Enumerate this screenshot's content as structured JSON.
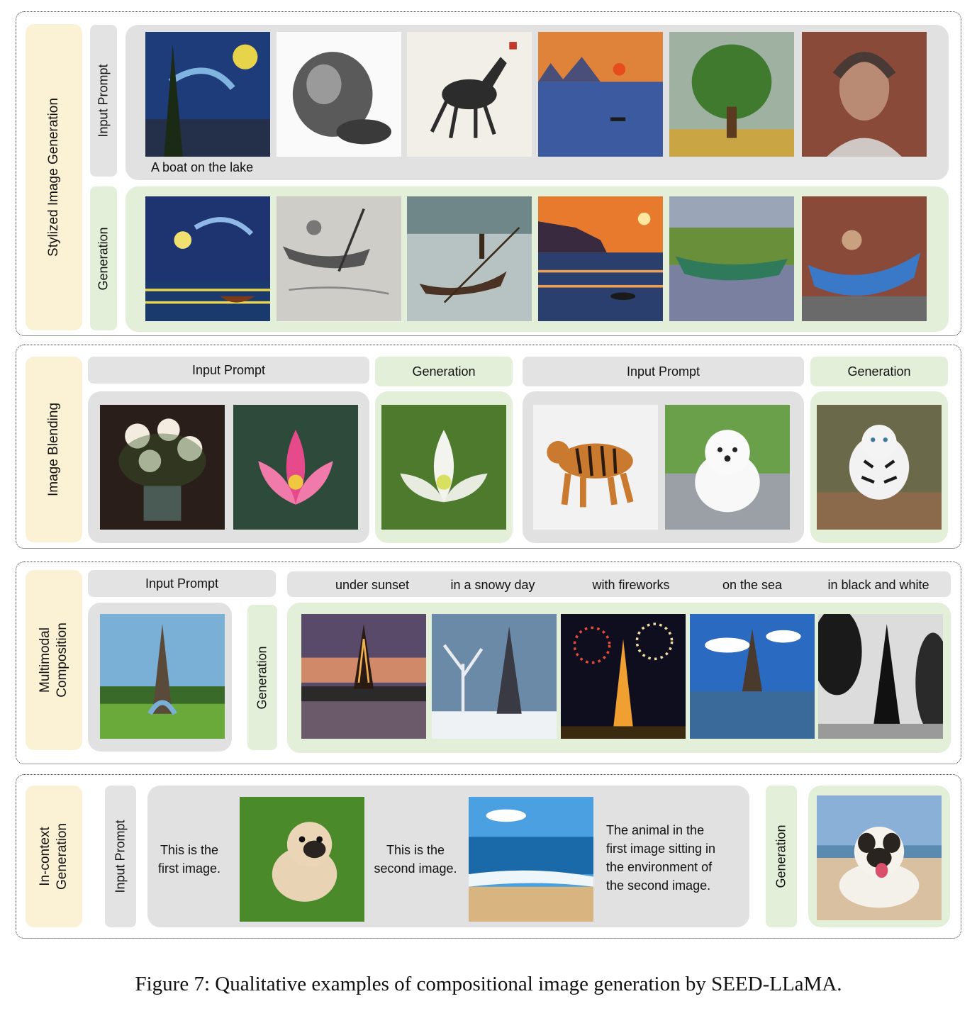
{
  "figure_caption": "Figure 7: Qualitative examples of compositional image generation by SEED-LLaMA.",
  "labels": {
    "input_prompt": "Input Prompt",
    "generation": "Generation"
  },
  "sections": {
    "stylized": {
      "category": "Stylized Image Generation",
      "prompt_text": "A boat on the lake",
      "input_images": [
        "starry-night-painting",
        "pencil-sketch-apple",
        "ink-wash-horse",
        "impressionist-sunrise-harbor",
        "pointillist-tree",
        "street-art-girl-portrait"
      ],
      "generation_images": [
        "starry-night-boat",
        "sketch-boat",
        "ink-wash-boat",
        "sunset-boat",
        "landscape-boat",
        "mural-boat"
      ]
    },
    "blending": {
      "category": "Image Blending",
      "pair1_input_images": [
        "flower-bouquet-painting",
        "pink-lotus-photo"
      ],
      "pair1_generation_image": "white-lotus-painting",
      "pair2_input_images": [
        "tiger-in-snow",
        "white-puppy"
      ],
      "pair2_generation_image": "white-tiger"
    },
    "composition": {
      "category_line1": "Multimodal",
      "category_line2": "Composition",
      "input_image": "eiffel-tower-day",
      "conditions": [
        "under sunset",
        "in a snowy day",
        "with fireworks",
        "on the sea",
        "in black and white"
      ],
      "generation_images": [
        "eiffel-sunset",
        "eiffel-snow",
        "eiffel-fireworks",
        "eiffel-sea",
        "eiffel-black-white"
      ]
    },
    "incontext": {
      "category_line1": "In-context",
      "category_line2": "Generation",
      "text_first_line1": "This is the",
      "text_first_line2": "first image.",
      "text_second_line1": "This is the",
      "text_second_line2": "second image.",
      "text_instruction_line1": "The animal in the",
      "text_instruction_line2": "first image sitting in",
      "text_instruction_line3": "the environment of",
      "text_instruction_line4": "the second image.",
      "input_images": [
        "pug-puppy-on-grass",
        "beach-ocean"
      ],
      "generation_image": "pug-on-beach"
    }
  }
}
